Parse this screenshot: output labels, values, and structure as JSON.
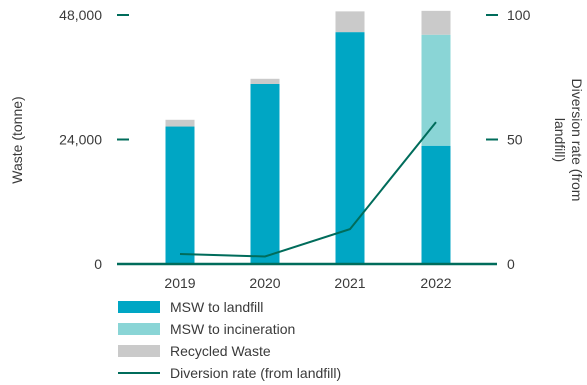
{
  "chart_data": {
    "type": "bar",
    "categories": [
      "2019",
      "2020",
      "2021",
      "2022"
    ],
    "series": [
      {
        "name": "MSW to landfill",
        "kind": "stacked-bar",
        "axis": "left",
        "color": "#00a6c4",
        "values": [
          26500,
          34700,
          44700,
          22800
        ]
      },
      {
        "name": "MSW to incineration",
        "kind": "stacked-bar",
        "axis": "left",
        "color": "#8ad5d6",
        "values": [
          0,
          0,
          0,
          21400
        ]
      },
      {
        "name": "Recycled Waste",
        "kind": "stacked-bar",
        "axis": "left",
        "color": "#cacaca",
        "values": [
          1300,
          1000,
          4000,
          4600
        ]
      },
      {
        "name": "Diversion rate (from landfill)",
        "kind": "line",
        "axis": "right",
        "color": "#006c5b",
        "values": [
          4,
          3,
          14,
          57
        ]
      }
    ],
    "ylabel": "Waste (tonne)",
    "y2label": "Diversion rate (from landfill)",
    "ylim": [
      0,
      48000
    ],
    "y2lim": [
      0,
      100
    ],
    "yticks": [
      "0",
      "24,000",
      "48,000"
    ],
    "y2ticks": [
      "0",
      "50",
      "100"
    ],
    "ytick_values": [
      0,
      24000,
      48000
    ],
    "y2tick_values": [
      0,
      50,
      100
    ],
    "legend_position": "bottom-left",
    "grid": false
  }
}
